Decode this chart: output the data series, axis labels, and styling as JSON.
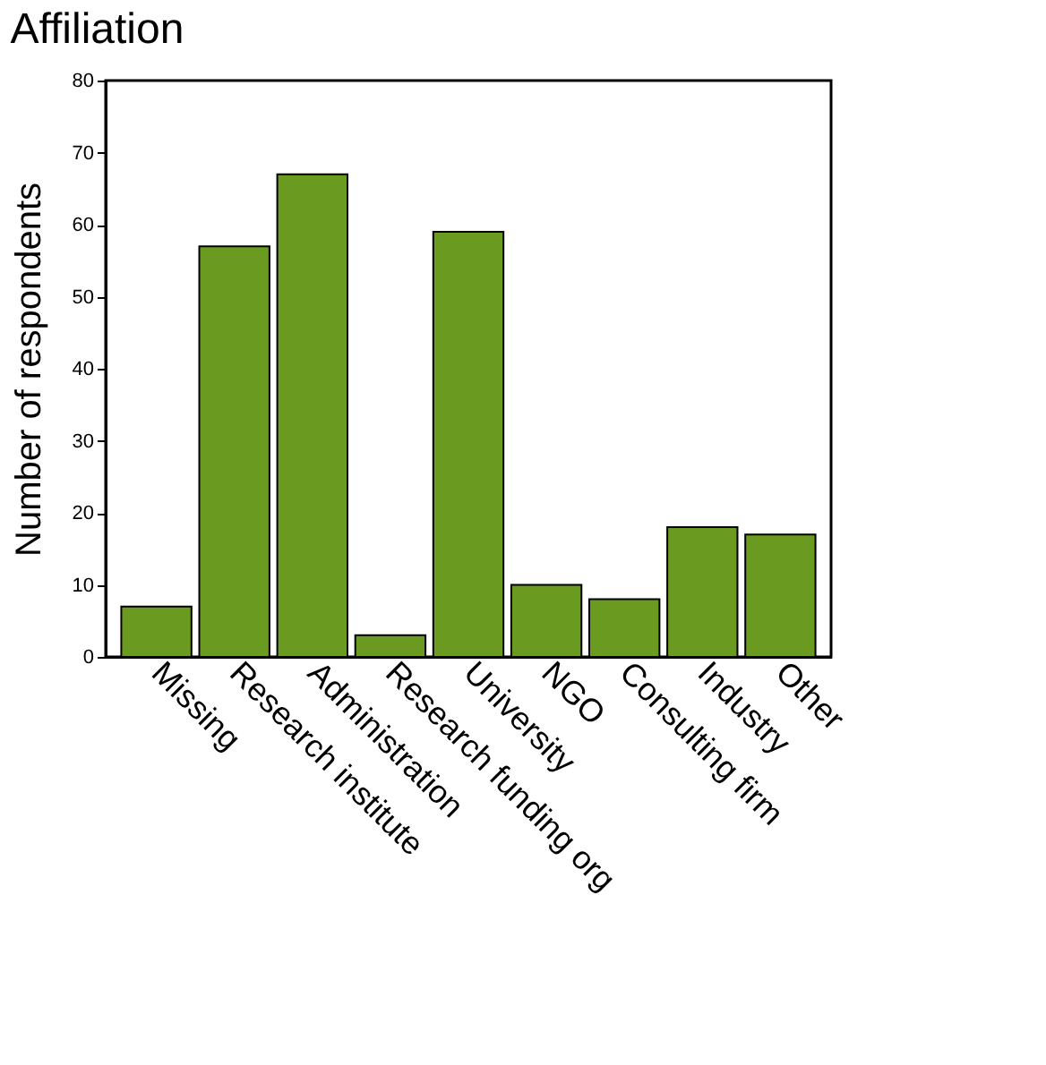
{
  "chart_data": {
    "type": "bar",
    "title": "Affiliation",
    "ylabel": "Number of respondents",
    "categories": [
      "Missing",
      "Research institute",
      "Administration",
      "Research funding org",
      "University",
      "NGO",
      "Consulting firm",
      "Industry",
      "Other"
    ],
    "values": [
      7,
      57,
      67,
      3,
      59,
      10,
      8,
      18,
      17
    ],
    "color": "#6a9a1f",
    "ylim": [
      0,
      80
    ],
    "yticks": [
      0,
      10,
      20,
      30,
      40,
      50,
      60,
      70,
      80
    ],
    "grid": false
  }
}
